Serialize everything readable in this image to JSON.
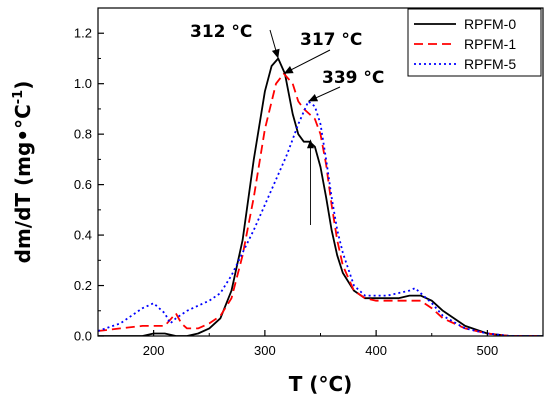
{
  "chart_data": {
    "type": "line",
    "xlabel": "T (°C)",
    "ylabel_main": "dm/dT (mg•°C",
    "ylabel_sup": "-1",
    "ylabel_close": ")",
    "xlim": [
      150,
      550
    ],
    "ylim": [
      0,
      1.3
    ],
    "x_ticks": [
      200,
      300,
      400,
      500
    ],
    "y_ticks": [
      0.0,
      0.2,
      0.4,
      0.6,
      0.8,
      1.0,
      1.2
    ],
    "y_tick_labels": [
      "0.0",
      "0.2",
      "0.4",
      "0.6",
      "0.8",
      "1.0",
      "1.2"
    ],
    "grid": false,
    "legend_position": "top-right",
    "series": [
      {
        "name": "RPFM-0",
        "color": "#000000",
        "style": "solid",
        "x": [
          150,
          170,
          190,
          200,
          210,
          220,
          230,
          240,
          250,
          260,
          270,
          280,
          290,
          300,
          306,
          312,
          318,
          325,
          330,
          335,
          340,
          345,
          350,
          355,
          360,
          365,
          370,
          380,
          390,
          400,
          410,
          420,
          430,
          440,
          450,
          460,
          480,
          500,
          520,
          550
        ],
        "y": [
          0.0,
          0.0,
          0.0,
          0.01,
          0.01,
          0.0,
          0.0,
          0.01,
          0.03,
          0.07,
          0.18,
          0.38,
          0.7,
          0.97,
          1.07,
          1.1,
          1.04,
          0.88,
          0.8,
          0.77,
          0.77,
          0.75,
          0.67,
          0.55,
          0.42,
          0.32,
          0.25,
          0.18,
          0.15,
          0.15,
          0.15,
          0.15,
          0.16,
          0.16,
          0.14,
          0.1,
          0.04,
          0.01,
          0.0,
          0.0
        ]
      },
      {
        "name": "RPFM-1",
        "color": "#ff0000",
        "style": "dashed",
        "x": [
          150,
          170,
          190,
          200,
          210,
          220,
          225,
          230,
          240,
          250,
          260,
          270,
          280,
          290,
          300,
          310,
          317,
          325,
          330,
          335,
          340,
          345,
          350,
          355,
          360,
          365,
          370,
          380,
          390,
          400,
          410,
          420,
          430,
          440,
          450,
          460,
          480,
          500,
          520,
          550
        ],
        "y": [
          0.02,
          0.03,
          0.04,
          0.04,
          0.04,
          0.09,
          0.05,
          0.03,
          0.03,
          0.05,
          0.08,
          0.15,
          0.32,
          0.55,
          0.82,
          1.0,
          1.04,
          1.0,
          0.93,
          0.9,
          0.88,
          0.86,
          0.8,
          0.68,
          0.52,
          0.38,
          0.28,
          0.18,
          0.15,
          0.14,
          0.14,
          0.14,
          0.14,
          0.14,
          0.11,
          0.07,
          0.03,
          0.01,
          0.0,
          0.0
        ]
      },
      {
        "name": "RPFM-5",
        "color": "#0000ff",
        "style": "dotted",
        "x": [
          150,
          170,
          190,
          200,
          210,
          215,
          220,
          230,
          240,
          250,
          260,
          270,
          280,
          290,
          300,
          310,
          320,
          330,
          339,
          345,
          350,
          355,
          360,
          365,
          370,
          380,
          390,
          400,
          410,
          420,
          430,
          435,
          440,
          450,
          460,
          480,
          500,
          520,
          550
        ],
        "y": [
          0.02,
          0.05,
          0.11,
          0.13,
          0.09,
          0.05,
          0.07,
          0.1,
          0.12,
          0.14,
          0.17,
          0.24,
          0.33,
          0.42,
          0.52,
          0.62,
          0.72,
          0.84,
          0.93,
          0.91,
          0.84,
          0.7,
          0.55,
          0.42,
          0.33,
          0.2,
          0.16,
          0.16,
          0.16,
          0.17,
          0.18,
          0.19,
          0.17,
          0.13,
          0.08,
          0.03,
          0.01,
          0.0,
          0.0
        ]
      }
    ],
    "annotations": [
      {
        "text": "312 °C",
        "x": 312,
        "y": 1.1
      },
      {
        "text": "317 °C",
        "x": 317,
        "y": 1.04
      },
      {
        "text": "339 °C",
        "x": 339,
        "y": 0.93
      }
    ],
    "arrow_marker": {
      "x": 341,
      "y_from": 0.44,
      "y_to": 0.78
    }
  }
}
